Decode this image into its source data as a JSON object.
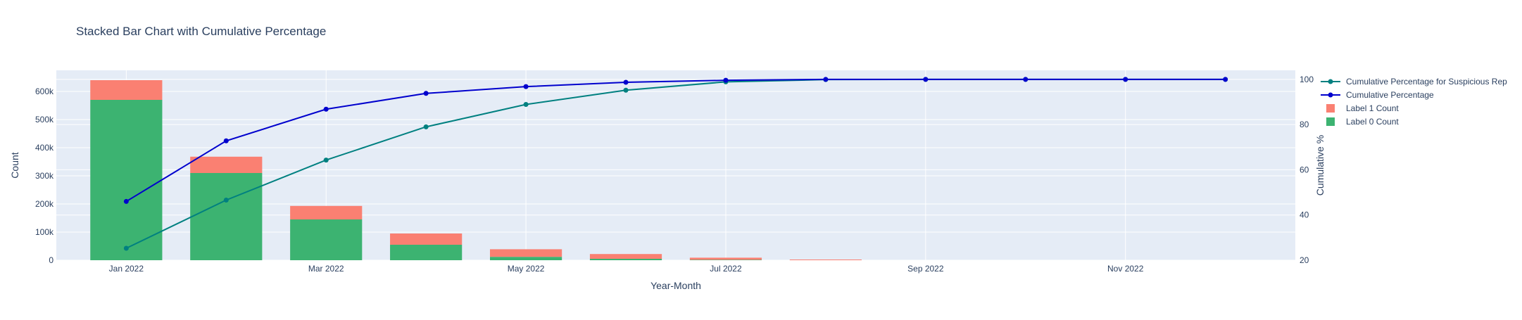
{
  "colors": {
    "plot_bg": "#e5ecf6",
    "grid": "#ffffff",
    "label0": "#3cb371",
    "label1": "#fa8072",
    "cum_pct": "#0000cd",
    "cum_pct_suspicious": "#008080",
    "text": "#2a3f5f"
  },
  "chart_data": {
    "type": "bar",
    "title": "Stacked Bar Chart with Cumulative Percentage",
    "xlabel": "Year-Month",
    "ylabel": "Count",
    "y2label": "Cumulative %",
    "barmode": "stack",
    "x": [
      "2022-01",
      "2022-02",
      "2022-03",
      "2022-04",
      "2022-05",
      "2022-06",
      "2022-07",
      "2022-08",
      "2022-09",
      "2022-10",
      "2022-11",
      "2022-12"
    ],
    "x_tick_labels": [
      "Jan 2022",
      "Mar 2022",
      "May 2022",
      "Jul 2022",
      "Sep 2022",
      "Nov 2022"
    ],
    "x_tick_values": [
      "2022-01",
      "2022-03",
      "2022-05",
      "2022-07",
      "2022-09",
      "2022-11"
    ],
    "ylim": [
      0,
      675000
    ],
    "y_ticks": [
      0,
      100000,
      200000,
      300000,
      400000,
      500000,
      600000
    ],
    "y_tick_labels": [
      "0",
      "100k",
      "200k",
      "300k",
      "400k",
      "500k",
      "600k"
    ],
    "y2lim": [
      20,
      104
    ],
    "y2_ticks": [
      20,
      40,
      60,
      80,
      100
    ],
    "y2_tick_labels": [
      "20",
      "40",
      "60",
      "80",
      "100"
    ],
    "grid": true,
    "legend_position": "top-right",
    "bars": [
      {
        "name": "Label 0 Count",
        "values": [
          570000,
          310000,
          145000,
          55000,
          12000,
          5000,
          1500,
          0,
          0,
          0,
          0,
          0
        ]
      },
      {
        "name": "Label 1 Count",
        "values": [
          70000,
          58000,
          48000,
          40000,
          27000,
          17000,
          7500,
          2500,
          0,
          0,
          0,
          0
        ]
      }
    ],
    "lines": [
      {
        "name": "Cumulative Percentage for Suspicious Rep",
        "axis": "y2",
        "values": [
          25.3,
          46.6,
          64.3,
          79.0,
          88.9,
          95.2,
          98.9,
          99.9,
          100.0,
          100.0,
          100.0,
          100.0
        ]
      },
      {
        "name": "Cumulative Percentage",
        "axis": "y2",
        "values": [
          46.0,
          72.8,
          86.8,
          93.8,
          96.8,
          98.7,
          99.6,
          100.0,
          100.0,
          100.0,
          100.0,
          100.0
        ]
      }
    ],
    "legend": [
      {
        "name": "Cumulative Percentage for Suspicious Rep",
        "kind": "line",
        "color_key": "cum_pct_suspicious"
      },
      {
        "name": "Cumulative Percentage",
        "kind": "line",
        "color_key": "cum_pct"
      },
      {
        "name": "Label 1 Count",
        "kind": "bar",
        "color_key": "label1"
      },
      {
        "name": "Label 0 Count",
        "kind": "bar",
        "color_key": "label0"
      }
    ]
  }
}
